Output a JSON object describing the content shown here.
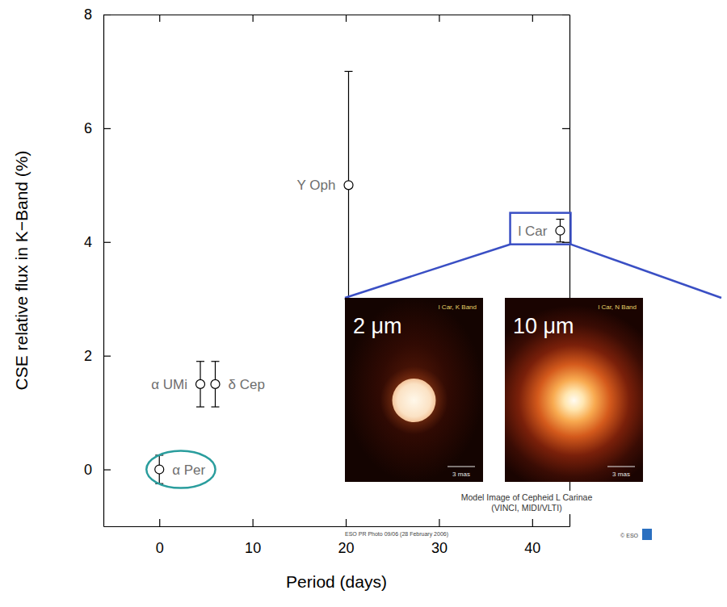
{
  "chart_data": {
    "type": "scatter",
    "xlabel": "Period (days)",
    "ylabel": "CSE relative flux in K−Band (%)",
    "xlim": [
      -6,
      44
    ],
    "ylim": [
      -1,
      8
    ],
    "xticks": [
      0,
      10,
      20,
      30,
      40
    ],
    "yticks": [
      0,
      2,
      4,
      6,
      8
    ],
    "grid": false,
    "series": [
      {
        "labels": [
          "α Per",
          "α UMi",
          "δ Cep",
          "Y Oph",
          "l Car"
        ],
        "x": [
          0,
          4.4,
          6.0,
          20.3,
          43.0
        ],
        "values": [
          0,
          1.5,
          1.5,
          5.0,
          4.2
        ],
        "errors": [
          0.25,
          0.4,
          0.4,
          2.0,
          0.2
        ],
        "marker": "circle",
        "color": "#000000"
      }
    ],
    "annotations": {
      "circled_point": 0,
      "boxed_point": 4,
      "inset_labels": [
        "2 μm",
        "10 μm"
      ],
      "image_titles": [
        "l Car, K Band",
        "l Car, N Band"
      ],
      "scale_bar": "3 mas",
      "caption": [
        "Model Image of Cepheid L Carinae",
        "(VINCI, MIDI/VLTI)"
      ],
      "credit": "ESO PR Photo 09/06 (28 February 2006)",
      "copyright": "© ESO"
    }
  }
}
